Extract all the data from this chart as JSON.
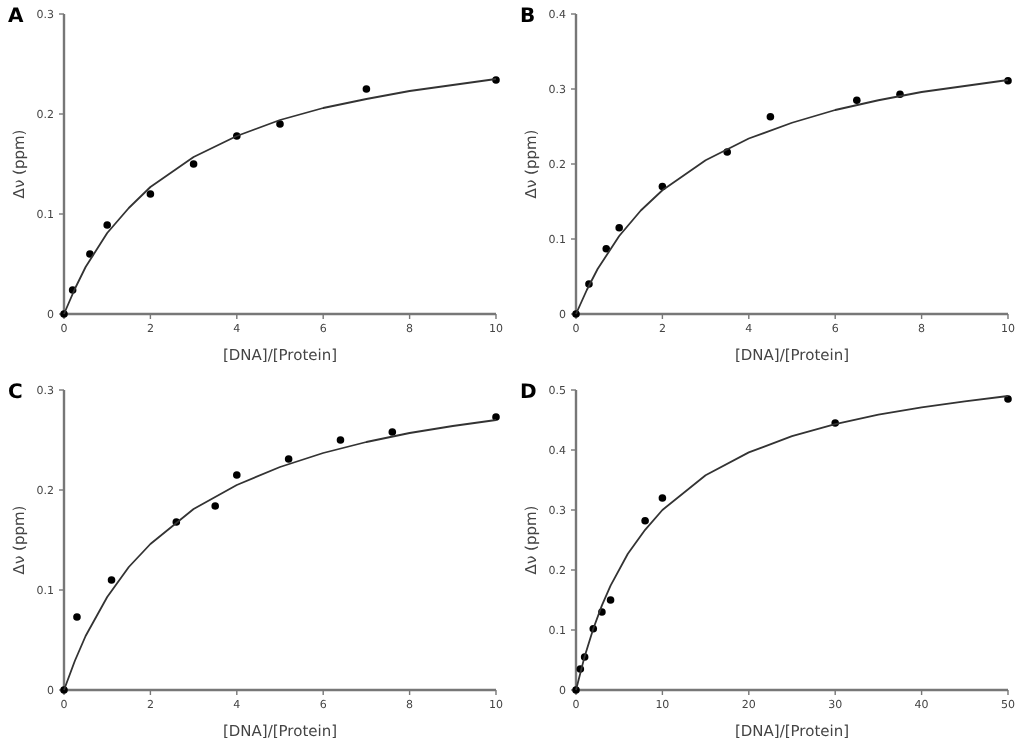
{
  "chart_data": [
    {
      "type": "scatter",
      "title": "A",
      "xlabel": "[DNA]/[Protein]",
      "ylabel": "Δν (ppm)",
      "xlim": [
        0,
        10
      ],
      "xticks": [
        0,
        2,
        4,
        6,
        8,
        10
      ],
      "ylim": [
        0,
        0.3
      ],
      "yticks": [
        0,
        0.1,
        0.2,
        0.3
      ],
      "series": [
        {
          "color": "#000000",
          "marker": "circle",
          "x": [
            0,
            0.2,
            0.6,
            1,
            2,
            3,
            4,
            5,
            7,
            10
          ],
          "values": [
            0,
            0.024,
            0.06,
            0.089,
            0.12,
            0.15,
            0.178,
            0.19,
            0.225,
            0.234
          ]
        },
        {
          "type": "line",
          "color": "#333333",
          "marker": "none",
          "line_style": "solid",
          "x": [
            0,
            0.25,
            0.5,
            1,
            1.5,
            2,
            3,
            4,
            5,
            6,
            7,
            8,
            9,
            10
          ],
          "values": [
            0,
            0.025,
            0.047,
            0.081,
            0.106,
            0.127,
            0.157,
            0.178,
            0.194,
            0.206,
            0.215,
            0.223,
            0.229,
            0.235
          ]
        }
      ]
    },
    {
      "type": "scatter",
      "title": "B",
      "xlabel": "[DNA]/[Protein]",
      "ylabel": "Δν (ppm)",
      "xlim": [
        0,
        10
      ],
      "xticks": [
        0,
        2,
        4,
        6,
        8,
        10
      ],
      "ylim": [
        0,
        0.4
      ],
      "yticks": [
        0,
        0.1,
        0.2,
        0.3,
        0.4
      ],
      "series": [
        {
          "color": "#000000",
          "marker": "circle",
          "x": [
            0,
            0.3,
            0.7,
            1,
            2,
            3.5,
            4.5,
            6.5,
            7.5,
            10
          ],
          "values": [
            0,
            0.04,
            0.087,
            0.115,
            0.17,
            0.216,
            0.263,
            0.285,
            0.293,
            0.311
          ]
        },
        {
          "type": "line",
          "color": "#333333",
          "marker": "none",
          "line_style": "solid",
          "x": [
            0,
            0.25,
            0.5,
            1,
            1.5,
            2,
            3,
            4,
            5,
            6,
            7,
            8,
            9,
            10
          ],
          "values": [
            0,
            0.032,
            0.06,
            0.104,
            0.138,
            0.165,
            0.205,
            0.234,
            0.255,
            0.272,
            0.285,
            0.296,
            0.304,
            0.312
          ]
        }
      ]
    },
    {
      "type": "scatter",
      "title": "C",
      "xlabel": "[DNA]/[Protein]",
      "ylabel": "Δν (ppm)",
      "xlim": [
        0,
        10
      ],
      "xticks": [
        0,
        2,
        4,
        6,
        8,
        10
      ],
      "ylim": [
        0,
        0.3
      ],
      "yticks": [
        0,
        0.1,
        0.2,
        0.3
      ],
      "series": [
        {
          "color": "#000000",
          "marker": "circle",
          "x": [
            0,
            0.3,
            1.1,
            2.6,
            3.5,
            4,
            5.2,
            6.4,
            7.6,
            10
          ],
          "values": [
            0,
            0.073,
            0.11,
            0.168,
            0.184,
            0.215,
            0.231,
            0.25,
            0.258,
            0.273
          ]
        },
        {
          "type": "line",
          "color": "#333333",
          "marker": "none",
          "line_style": "solid",
          "x": [
            0,
            0.25,
            0.5,
            1,
            1.5,
            2,
            3,
            4,
            5,
            6,
            7,
            8,
            9,
            10
          ],
          "values": [
            0,
            0.029,
            0.054,
            0.093,
            0.123,
            0.146,
            0.181,
            0.205,
            0.223,
            0.237,
            0.248,
            0.257,
            0.264,
            0.27
          ]
        }
      ]
    },
    {
      "type": "scatter",
      "title": "D",
      "xlabel": "[DNA]/[Protein]",
      "ylabel": "Δν (ppm)",
      "xlim": [
        0,
        50
      ],
      "xticks": [
        0,
        10,
        20,
        30,
        40,
        50
      ],
      "ylim": [
        0,
        0.5
      ],
      "yticks": [
        0,
        0.1,
        0.2,
        0.3,
        0.4,
        0.5
      ],
      "series": [
        {
          "color": "#000000",
          "marker": "circle",
          "x": [
            0,
            0.5,
            1,
            2,
            3,
            4,
            8,
            10,
            30,
            50
          ],
          "values": [
            0,
            0.035,
            0.055,
            0.102,
            0.13,
            0.15,
            0.282,
            0.32,
            0.445,
            0.485
          ]
        },
        {
          "type": "line",
          "color": "#333333",
          "marker": "none",
          "line_style": "solid",
          "x": [
            0,
            1,
            2,
            3,
            4,
            6,
            8,
            10,
            15,
            20,
            25,
            30,
            35,
            40,
            45,
            50
          ],
          "values": [
            0,
            0.056,
            0.102,
            0.141,
            0.174,
            0.227,
            0.267,
            0.3,
            0.358,
            0.396,
            0.423,
            0.443,
            0.459,
            0.471,
            0.481,
            0.49
          ]
        }
      ]
    }
  ]
}
